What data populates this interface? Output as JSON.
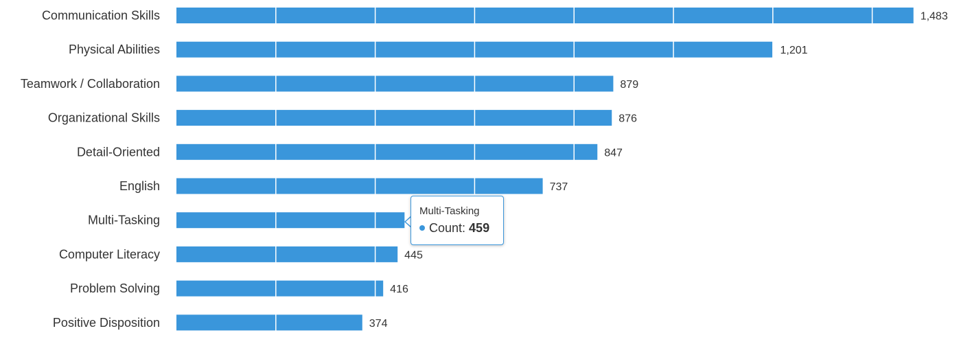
{
  "colors": {
    "bar": "#3a96db",
    "grid": "#ffffff",
    "text": "#333333",
    "tooltip_border": "#3a96db"
  },
  "chart_data": {
    "type": "bar",
    "orientation": "horizontal",
    "title": "",
    "xlabel": "",
    "ylabel": "",
    "xlim": [
      0,
      1500
    ],
    "grid": true,
    "categories": [
      "Communication Skills",
      "Physical Abilities",
      "Teamwork / Collaboration",
      "Organizational Skills",
      "Detail-Oriented",
      "English",
      "Multi-Tasking",
      "Computer Literacy",
      "Problem Solving",
      "Positive Disposition"
    ],
    "values": [
      1483,
      1201,
      879,
      876,
      847,
      737,
      459,
      445,
      416,
      374
    ],
    "value_labels": [
      "1,483",
      "1,201",
      "879",
      "876",
      "847",
      "737",
      "459",
      "445",
      "416",
      "374"
    ]
  },
  "tooltip": {
    "title": "Multi-Tasking",
    "series_label": "Count: ",
    "value": "459"
  }
}
